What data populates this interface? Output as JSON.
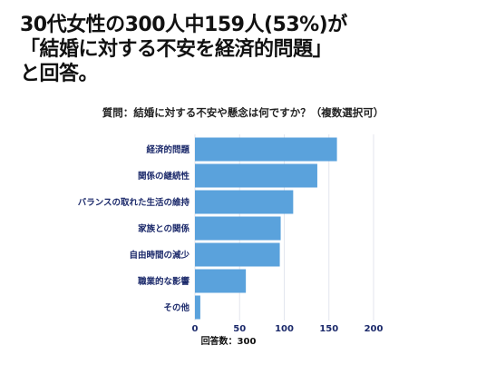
{
  "headline": {
    "line1": "30代女性の300人中159人(53%)が",
    "line2": "「結婚に対する不安を経済的問題」",
    "line3": "と回答。"
  },
  "question": "質問：結婚に対する不安や懸念は何ですか？（複数選択可）",
  "chart_data": {
    "type": "bar",
    "orientation": "horizontal",
    "categories": [
      "経済的問題",
      "関係の継続性",
      "バランスの取れた生活の維持",
      "家族との関係",
      "自由時間の減少",
      "職業的な影響",
      "その他"
    ],
    "values": [
      159,
      137,
      110,
      96,
      95,
      57,
      6
    ],
    "xlim": [
      0,
      200
    ],
    "xticks": [
      0,
      50,
      100,
      150,
      200
    ],
    "xlabel": "回答数：300",
    "bar_color": "#5aa2dc",
    "grid": "vertical"
  }
}
